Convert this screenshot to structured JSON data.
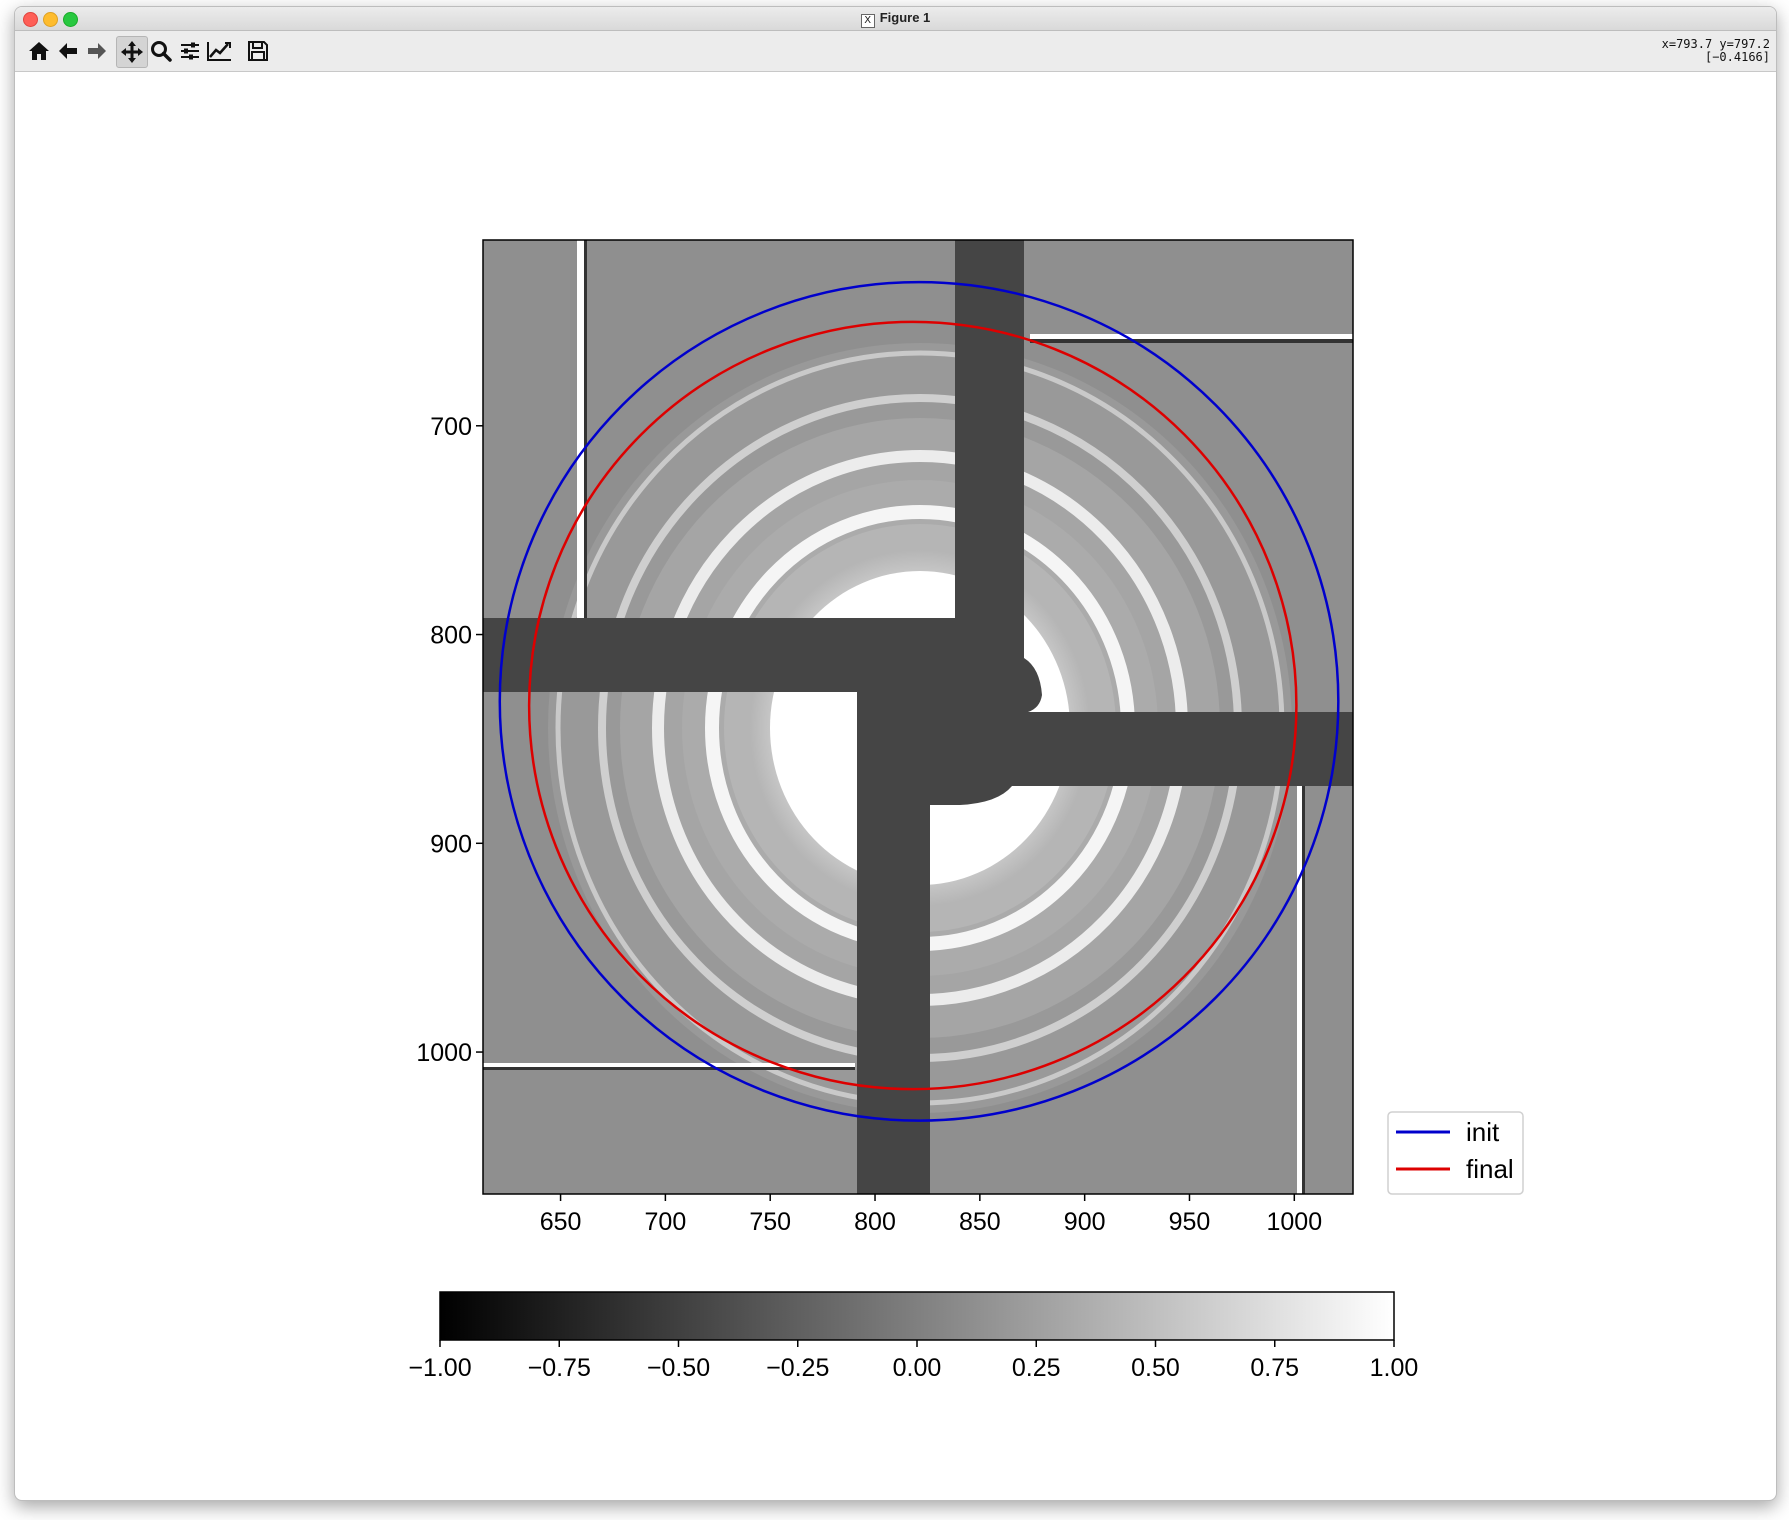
{
  "window": {
    "title": "Figure 1"
  },
  "toolbar": {
    "buttons": [
      {
        "name": "home-button",
        "icon": "home-icon"
      },
      {
        "name": "back-button",
        "icon": "arrow-left-icon"
      },
      {
        "name": "forward-button",
        "icon": "arrow-right-icon"
      },
      {
        "name": "pan-button",
        "icon": "move-icon",
        "active": true
      },
      {
        "name": "zoom-button",
        "icon": "magnifier-icon"
      },
      {
        "name": "configure-subplots-button",
        "icon": "sliders-icon"
      },
      {
        "name": "edit-axes-button",
        "icon": "line-chart-icon"
      },
      {
        "name": "save-button",
        "icon": "floppy-disk-icon"
      }
    ],
    "coords_line1": "x=793.7 y=797.2",
    "coords_line2": "[−0.4166]"
  },
  "chart_data": {
    "type": "image",
    "description_free": true,
    "xlim": [
      613,
      1028
    ],
    "ylim": [
      1068,
      611
    ],
    "x_ticks": [
      "650",
      "700",
      "750",
      "800",
      "850",
      "900",
      "950",
      "1000"
    ],
    "x_tick_values": [
      650,
      700,
      750,
      800,
      850,
      900,
      950,
      1000
    ],
    "y_ticks": [
      "700",
      "800",
      "900",
      "1000"
    ],
    "y_tick_values": [
      700,
      800,
      900,
      1000
    ],
    "series": [
      {
        "name": "init",
        "color": "#0000cc",
        "center": [
          821,
          832
        ],
        "radius": 200
      },
      {
        "name": "final",
        "color": "#dd0000",
        "center": [
          818,
          834
        ],
        "radius": 183
      }
    ],
    "legend": [
      "init",
      "final"
    ],
    "colorbar": {
      "range": [
        -1.0,
        1.0
      ],
      "ticks": [
        "−1.00",
        "−0.75",
        "−0.50",
        "−0.25",
        "0.00",
        "0.25",
        "0.50",
        "0.75",
        "1.00"
      ],
      "tick_values": [
        -1.0,
        -0.75,
        -0.5,
        -0.25,
        0.0,
        0.25,
        0.5,
        0.75,
        1.0
      ],
      "colormap": "gray"
    }
  }
}
